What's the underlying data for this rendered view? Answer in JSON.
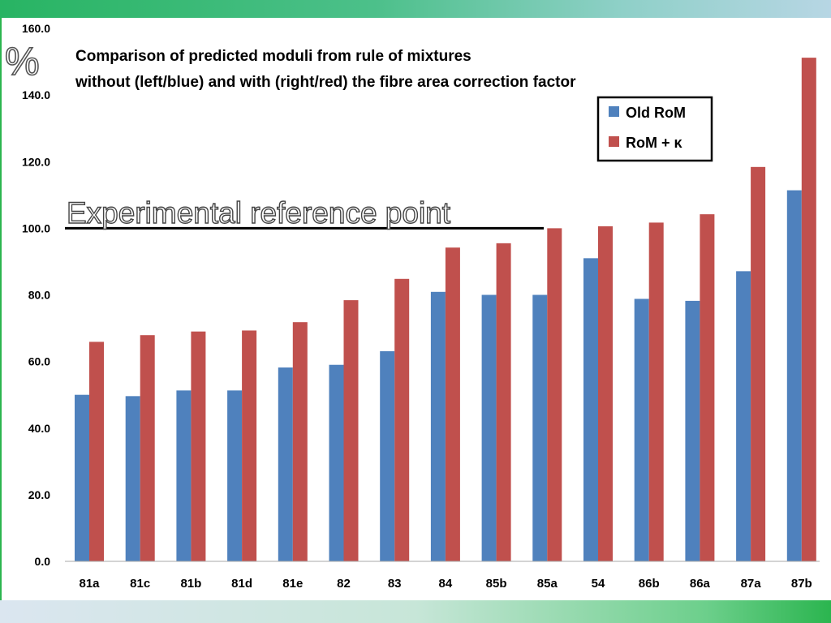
{
  "title_line1": "Comparison of predicted moduli from rule of mixtures",
  "title_line2": "without (left/blue) and with (right/red) the fibre area correction factor",
  "unit_label": "%",
  "reference_label": "Experimental reference point",
  "colors": {
    "old": "#4f81bd",
    "new": "#c0504d"
  },
  "chart_data": {
    "type": "bar",
    "categories": [
      "81a",
      "81c",
      "81b",
      "81d",
      "81e",
      "82",
      "83",
      "84",
      "85b",
      "85a",
      "54",
      "86b",
      "86a",
      "87a",
      "87b"
    ],
    "series": [
      {
        "name": "Old RoM",
        "values": [
          50.0,
          49.6,
          51.3,
          51.3,
          58.2,
          59.0,
          63.1,
          80.9,
          80.0,
          80.0,
          91.0,
          78.8,
          78.2,
          87.1,
          111.4
        ]
      },
      {
        "name": "RoM + κ",
        "values": [
          65.9,
          67.9,
          69.0,
          69.3,
          71.8,
          78.4,
          84.8,
          94.2,
          95.5,
          100.0,
          100.6,
          101.7,
          104.2,
          118.4,
          151.2
        ]
      }
    ],
    "ylim": [
      0,
      160
    ],
    "yticks": [
      "0.0",
      "20.0",
      "40.0",
      "60.0",
      "80.0",
      "100.0",
      "120.0",
      "140.0",
      "160.0"
    ],
    "reference_value": 100,
    "legend_position": "top-right",
    "grid": false
  }
}
